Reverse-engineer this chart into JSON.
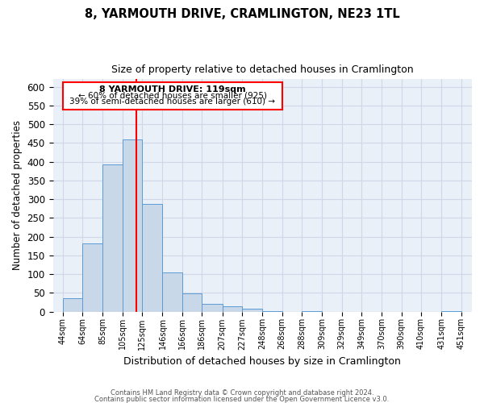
{
  "title": "8, YARMOUTH DRIVE, CRAMLINGTON, NE23 1TL",
  "subtitle": "Size of property relative to detached houses in Cramlington",
  "xlabel": "Distribution of detached houses by size in Cramlington",
  "ylabel": "Number of detached properties",
  "bin_edges": [
    44,
    64,
    85,
    105,
    125,
    146,
    166,
    186,
    207,
    227,
    248,
    268,
    288,
    309,
    329,
    349,
    370,
    390,
    410,
    431,
    451
  ],
  "bar_heights": [
    35,
    182,
    392,
    460,
    287,
    105,
    48,
    20,
    15,
    7,
    2,
    0,
    2,
    0,
    0,
    0,
    0,
    0,
    0,
    2
  ],
  "bar_color": "#c8d8e8",
  "bar_edge_color": "#5b9bd5",
  "tick_labels": [
    "44sqm",
    "64sqm",
    "85sqm",
    "105sqm",
    "125sqm",
    "146sqm",
    "166sqm",
    "186sqm",
    "207sqm",
    "227sqm",
    "248sqm",
    "268sqm",
    "288sqm",
    "309sqm",
    "329sqm",
    "349sqm",
    "370sqm",
    "390sqm",
    "410sqm",
    "431sqm",
    "451sqm"
  ],
  "ylim": [
    0,
    620
  ],
  "xlim": [
    34,
    462
  ],
  "red_line_x": 119,
  "annotation_title": "8 YARMOUTH DRIVE: 119sqm",
  "annotation_line1": "← 60% of detached houses are smaller (925)",
  "annotation_line2": "39% of semi-detached houses are larger (610) →",
  "grid_color": "#d0d8e8",
  "background_color": "#eaf0f8",
  "footer1": "Contains HM Land Registry data © Crown copyright and database right 2024.",
  "footer2": "Contains public sector information licensed under the Open Government Licence v3.0."
}
